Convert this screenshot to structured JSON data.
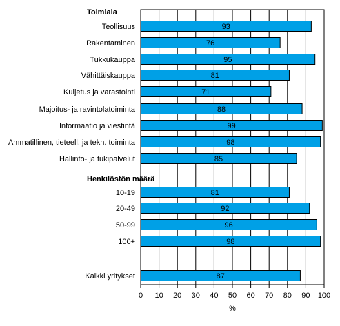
{
  "chart_data": {
    "type": "bar",
    "orientation": "horizontal",
    "groups": [
      {
        "label": "Toimiala",
        "rows": [
          {
            "label": "Teollisuus",
            "value": 93
          },
          {
            "label": "Rakentaminen",
            "value": 76
          },
          {
            "label": "Tukkukauppa",
            "value": 95
          },
          {
            "label": "Vähittäiskauppa",
            "value": 81
          },
          {
            "label": "Kuljetus ja varastointi",
            "value": 71
          },
          {
            "label": "Majoitus- ja ravintolatoiminta",
            "value": 88
          },
          {
            "label": "Informaatio ja viestintä",
            "value": 99
          },
          {
            "label": "Ammatillinen, tieteell. ja tekn. toiminta",
            "value": 98
          },
          {
            "label": "Hallinto- ja tukipalvelut",
            "value": 85
          }
        ]
      },
      {
        "label": "Henkilöstön määrä",
        "rows": [
          {
            "label": "10-19",
            "value": 81
          },
          {
            "label": "20-49",
            "value": 92
          },
          {
            "label": "50-99",
            "value": 96
          },
          {
            "label": "100+",
            "value": 98
          }
        ]
      },
      {
        "label": "",
        "rows": [
          {
            "label": "Kaikki yritykset",
            "value": 87
          }
        ]
      }
    ],
    "xlabel": "%",
    "xlim": [
      0,
      100
    ],
    "xticks": [
      0,
      10,
      20,
      30,
      40,
      50,
      60,
      70,
      80,
      90,
      100
    ],
    "grid": true,
    "bar_color": "#00a0e6",
    "bar_edge_color": "#000000"
  }
}
